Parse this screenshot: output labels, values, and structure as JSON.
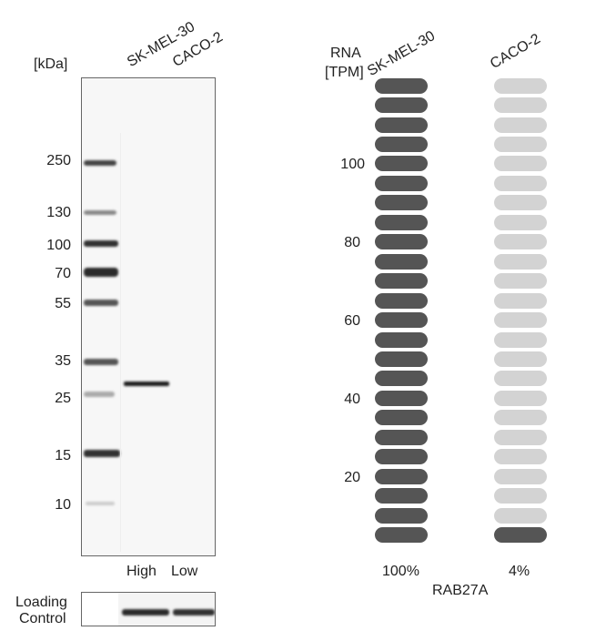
{
  "western_blot": {
    "unit_label": "[kDa]",
    "lanes": [
      "SK-MEL-30",
      "CACO-2"
    ],
    "markers": [
      "250",
      "130",
      "100",
      "70",
      "55",
      "35",
      "25",
      "15",
      "10"
    ],
    "expression": [
      "High",
      "Low"
    ],
    "loading_control": [
      "Loading",
      "Control"
    ]
  },
  "rna_chart": {
    "axis_title": [
      "RNA",
      "[TPM]"
    ],
    "column_labels": [
      "SK-MEL-30",
      "CACO-2"
    ],
    "tick_labels": [
      "100",
      "80",
      "60",
      "40",
      "20"
    ],
    "percent_labels": [
      "100%",
      "4%"
    ],
    "gene": "RAB27A",
    "colors": {
      "filled": "#555555",
      "empty": "#d3d3d3",
      "background": "#ffffff"
    }
  },
  "chart_data": {
    "type": "bar",
    "title": "",
    "xlabel": "RAB27A",
    "ylabel": "RNA [TPM]",
    "categories": [
      "SK-MEL-30",
      "CACO-2"
    ],
    "values": [
      100,
      4
    ],
    "value_unit": "% of max",
    "segments_total": 24,
    "segments_filled": [
      24,
      1
    ],
    "y_ticks": [
      20,
      40,
      60,
      80,
      100
    ],
    "ylim": [
      0,
      120
    ],
    "grid": false
  }
}
